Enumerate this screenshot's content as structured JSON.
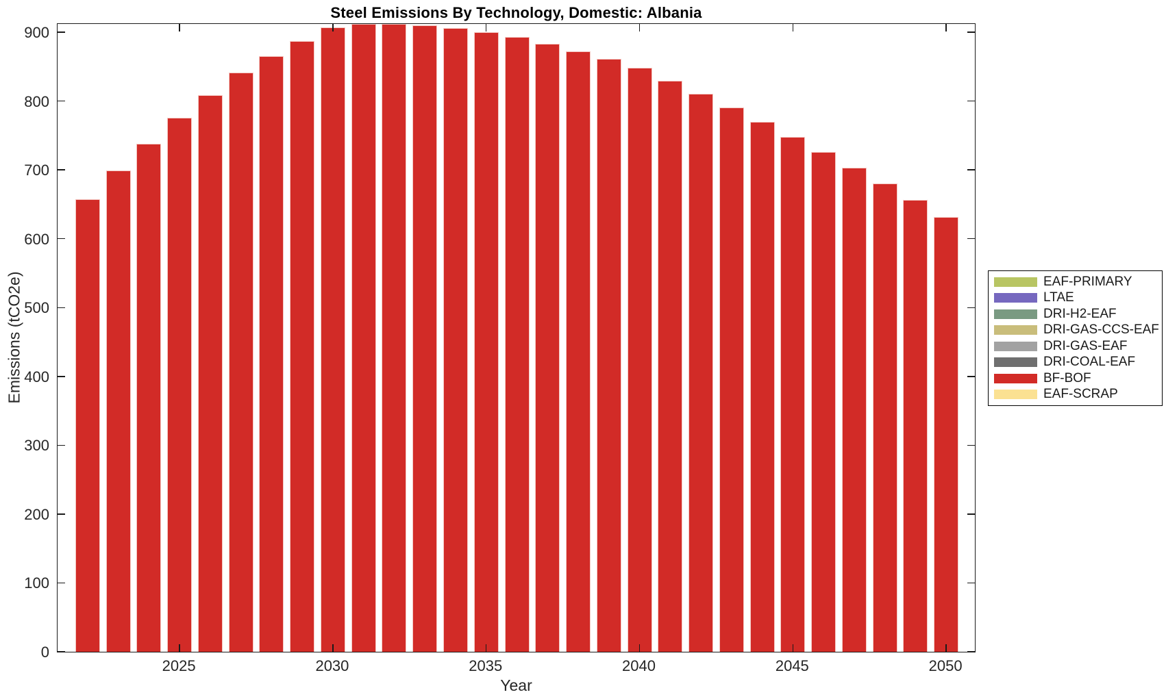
{
  "chart_data": {
    "type": "bar",
    "title": "Steel Emissions By Technology, Domestic: Albania",
    "xlabel": "Year",
    "ylabel": "Emissions (tCO2e)",
    "categories": [
      2022,
      2023,
      2024,
      2025,
      2026,
      2027,
      2028,
      2029,
      2030,
      2031,
      2032,
      2033,
      2034,
      2035,
      2036,
      2037,
      2038,
      2039,
      2040,
      2041,
      2042,
      2043,
      2044,
      2045,
      2046,
      2047,
      2048,
      2049,
      2050
    ],
    "series": [
      {
        "name": "BF-BOF",
        "color": "#d22b27",
        "values": [
          657,
          699,
          738,
          776,
          809,
          841,
          865,
          887,
          907,
          912,
          912,
          910,
          906,
          900,
          893,
          883,
          872,
          861,
          848,
          829,
          811,
          791,
          770,
          748,
          726,
          703,
          680,
          656,
          632
        ]
      }
    ],
    "x_ticks": [
      2025,
      2030,
      2035,
      2040,
      2045,
      2050
    ],
    "y_ticks": [
      0,
      100,
      200,
      300,
      400,
      500,
      600,
      700,
      800,
      900
    ],
    "xlim": [
      2021.02,
      2050.98
    ],
    "ylim": [
      0,
      914
    ],
    "grid": false,
    "legend_position": "outside-right",
    "legend": [
      {
        "label": "EAF-PRIMARY",
        "color": "#b8c563"
      },
      {
        "label": "LTAE",
        "color": "#7668bf"
      },
      {
        "label": "DRI-H2-EAF",
        "color": "#7a9a82"
      },
      {
        "label": "DRI-GAS-CCS-EAF",
        "color": "#c9bd7b"
      },
      {
        "label": "DRI-GAS-EAF",
        "color": "#a2a2a2"
      },
      {
        "label": "DRI-COAL-EAF",
        "color": "#6f6f6f"
      },
      {
        "label": "BF-BOF",
        "color": "#d22b27"
      },
      {
        "label": "EAF-SCRAP",
        "color": "#fbe192"
      }
    ]
  }
}
